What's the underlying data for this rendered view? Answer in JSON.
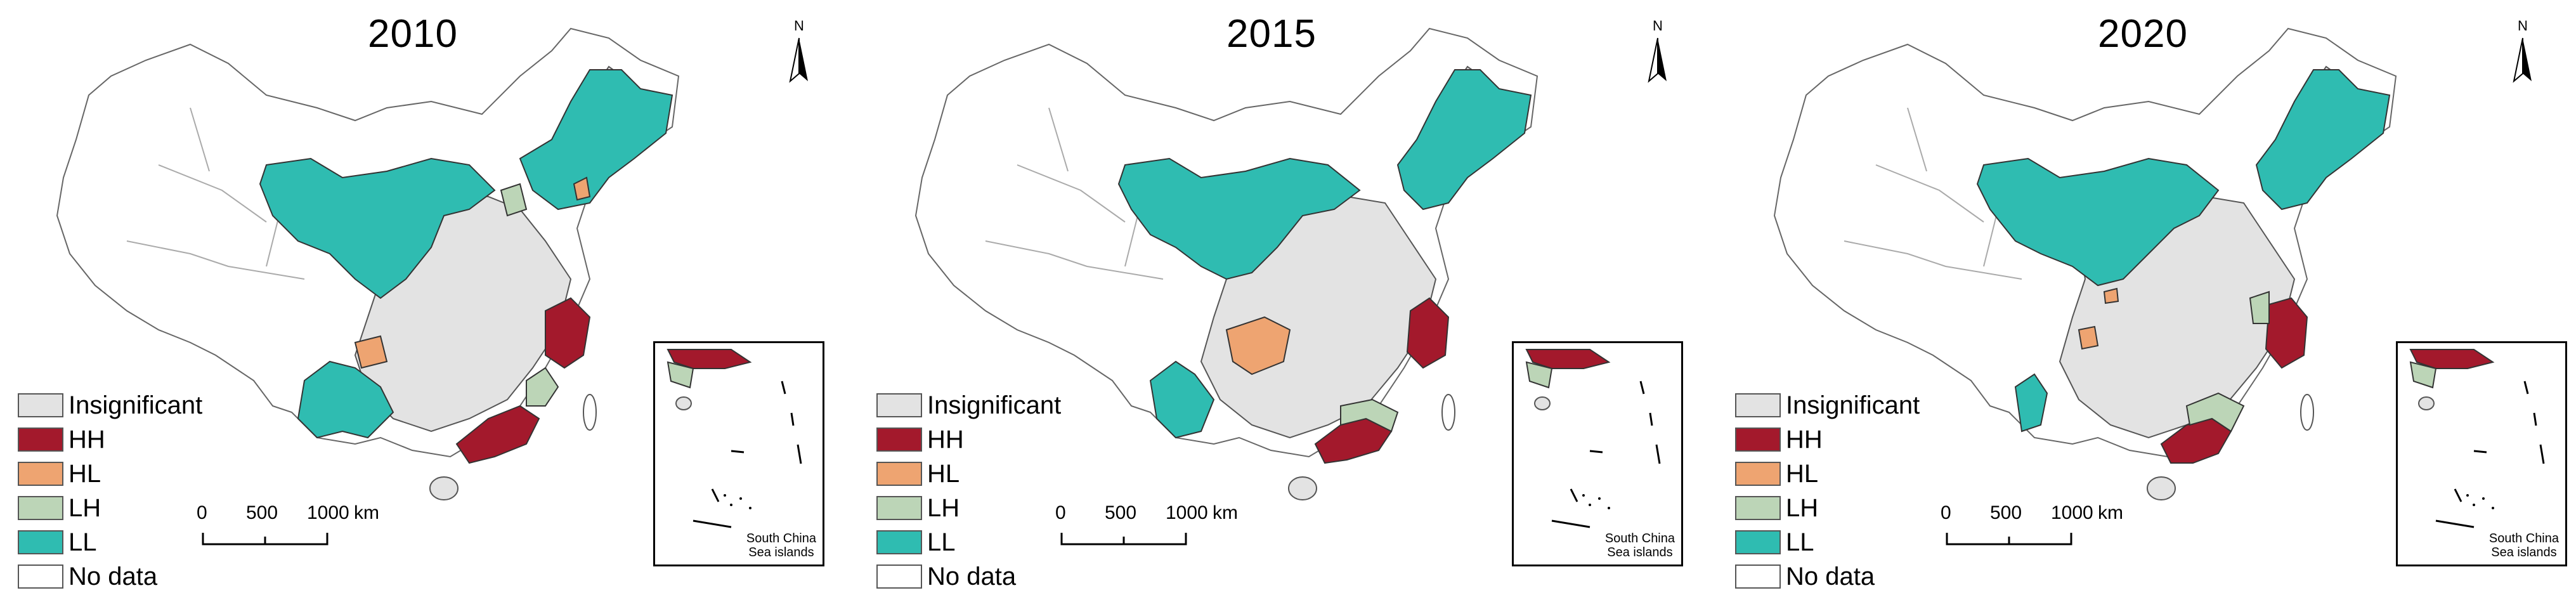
{
  "north_label": "N",
  "legend": [
    {
      "key": "insignificant",
      "label": "Insignificant",
      "color": "#e3e3e3"
    },
    {
      "key": "hh",
      "label": "HH",
      "color": "#a3192c"
    },
    {
      "key": "hl",
      "label": "HL",
      "color": "#eea471"
    },
    {
      "key": "lh",
      "label": "LH",
      "color": "#bcd5b7"
    },
    {
      "key": "ll",
      "label": "LL",
      "color": "#2fbcb1"
    },
    {
      "key": "nodata",
      "label": "No data",
      "color": "#ffffff"
    }
  ],
  "scale": {
    "ticks": [
      "0",
      "500",
      "1000"
    ],
    "unit": "km"
  },
  "inset_label": [
    "South China",
    "Sea islands"
  ],
  "panels": [
    {
      "year": "2010"
    },
    {
      "year": "2015"
    },
    {
      "year": "2020"
    }
  ]
}
